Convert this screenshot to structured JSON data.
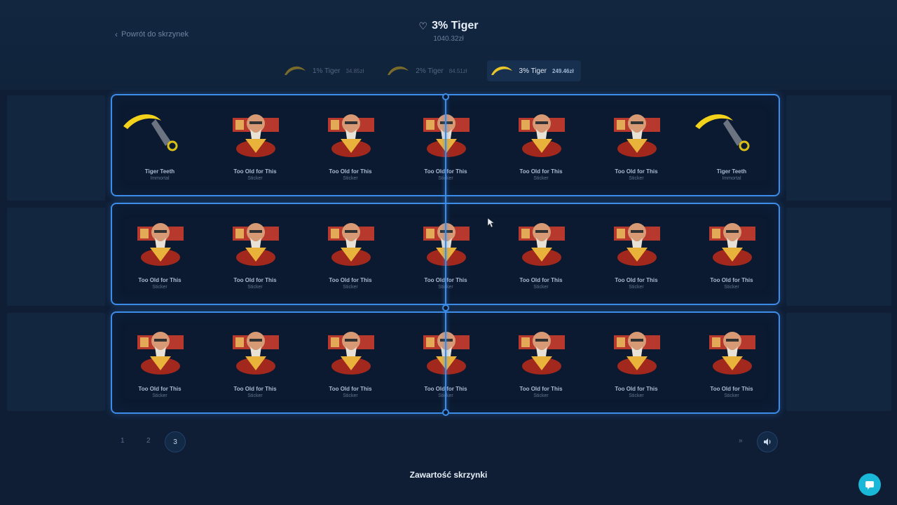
{
  "header": {
    "back_label": "Powrót do skrzynek",
    "title": "3% Tiger",
    "subtitle": "1040.32zł"
  },
  "tabs": [
    {
      "label": "1% Tiger",
      "price": "34.85zł",
      "active": false
    },
    {
      "label": "2% Tiger",
      "price": "84.51zł",
      "active": false
    },
    {
      "label": "3% Tiger",
      "price": "249.46zł",
      "active": true
    }
  ],
  "rows": [
    [
      {
        "type": "knife",
        "name": "Tiger Teeth",
        "rarity": "Immortal"
      },
      {
        "type": "sticker",
        "name": "Too Old for This",
        "rarity": "Sticker"
      },
      {
        "type": "sticker",
        "name": "Too Old for This",
        "rarity": "Sticker"
      },
      {
        "type": "sticker",
        "name": "Too Old for This",
        "rarity": "Sticker"
      },
      {
        "type": "sticker",
        "name": "Too Old for This",
        "rarity": "Sticker"
      },
      {
        "type": "sticker",
        "name": "Too Old for This",
        "rarity": "Sticker"
      },
      {
        "type": "knife",
        "name": "Tiger Teeth",
        "rarity": "Immortal"
      }
    ],
    [
      {
        "type": "sticker",
        "name": "Too Old for This",
        "rarity": "Sticker"
      },
      {
        "type": "sticker",
        "name": "Too Old for This",
        "rarity": "Sticker"
      },
      {
        "type": "sticker",
        "name": "Too Old for This",
        "rarity": "Sticker"
      },
      {
        "type": "sticker",
        "name": "Too Old for This",
        "rarity": "Sticker"
      },
      {
        "type": "sticker",
        "name": "Too Old for This",
        "rarity": "Sticker"
      },
      {
        "type": "sticker",
        "name": "Too Old for This",
        "rarity": "Sticker"
      },
      {
        "type": "sticker",
        "name": "Too Old for This",
        "rarity": "Sticker"
      }
    ],
    [
      {
        "type": "sticker",
        "name": "Too Old for This",
        "rarity": "Sticker"
      },
      {
        "type": "sticker",
        "name": "Too Old for This",
        "rarity": "Sticker"
      },
      {
        "type": "sticker",
        "name": "Too Old for This",
        "rarity": "Sticker"
      },
      {
        "type": "sticker",
        "name": "Too Old for This",
        "rarity": "Sticker"
      },
      {
        "type": "sticker",
        "name": "Too Old for This",
        "rarity": "Sticker"
      },
      {
        "type": "sticker",
        "name": "Too Old for This",
        "rarity": "Sticker"
      },
      {
        "type": "sticker",
        "name": "Too Old for This",
        "rarity": "Sticker"
      }
    ]
  ],
  "controls": {
    "counts": [
      "1",
      "2",
      "3"
    ],
    "selected_count": "3",
    "fast_label": "»",
    "sound_icon": "speaker-icon"
  },
  "footer": {
    "section_title": "Zawartość skrzynki",
    "chat_icon": "chat-icon"
  },
  "colors": {
    "accent": "#3d8ce8",
    "background": "#0f1e35",
    "chat": "#19b7d8",
    "knife_blade": "#f2d21a"
  }
}
